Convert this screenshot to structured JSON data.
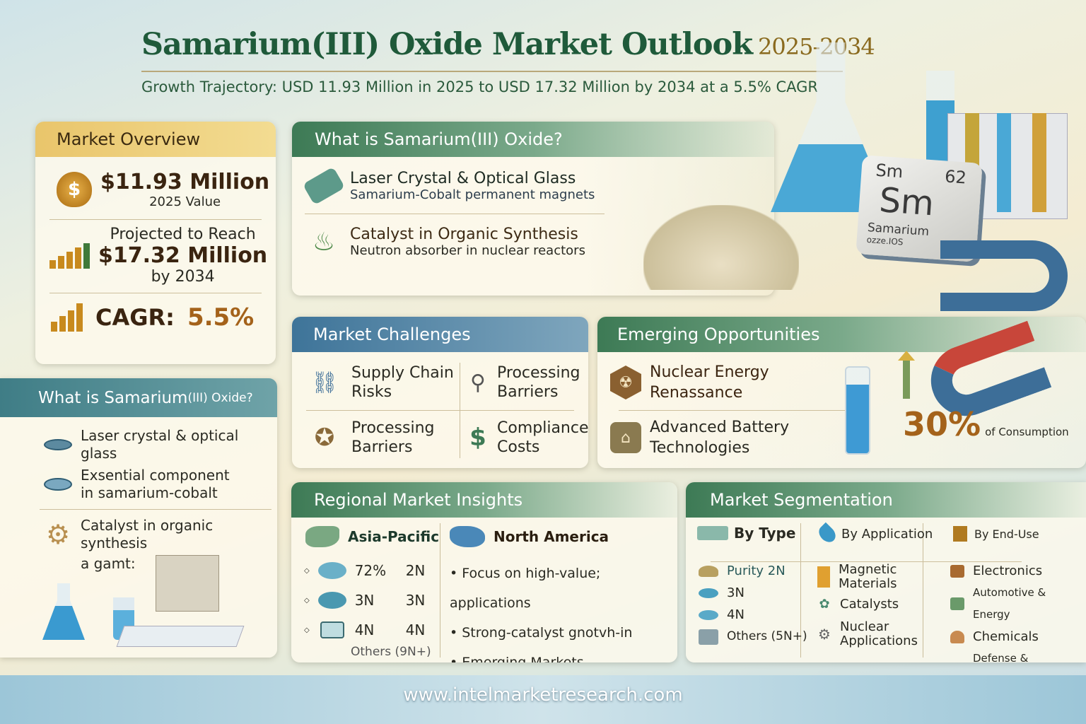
{
  "header": {
    "title": "Samarium(III) Oxide Market Outlook",
    "years": "2025-2034",
    "subtitle": "Growth Trajectory: USD 11.93 Million in 2025 to USD 17.32 Million by 2034 at a 5.5% CAGR"
  },
  "overview": {
    "title": "Market Overview",
    "value_2025": "$11.93 Million",
    "value_2025_label": "2025 Value",
    "projected_label": "Projected to Reach",
    "value_2034": "$17.32 Million",
    "value_2034_label": "by 2034",
    "cagr_label": "CAGR:",
    "cagr": "5.5%"
  },
  "what_is_left": {
    "title_main": "What is Samarium",
    "title_suffix": "(III) Oxide?",
    "items": [
      "Laser crystal & optical glass",
      "Exsential component in samarium-cobalt",
      "Catalyst in organic synthesis",
      "a gamt:"
    ]
  },
  "what_is_top": {
    "title": "What is Samarium(III) Oxide?",
    "items": [
      {
        "title": "Laser Crystal & Optical Glass",
        "sub": "Samarium-Cobalt permanent magnets"
      },
      {
        "title": "Catalyst in Organic Synthesis",
        "sub": "Neutron absorber in nuclear reactors"
      }
    ]
  },
  "element_tile": {
    "symbol_small": "Sm",
    "number": "62",
    "symbol": "Sm",
    "name": "Samarium",
    "caption": "ozze.IOS"
  },
  "challenges": {
    "title": "Market Challenges",
    "items": [
      "Supply Chain Risks",
      "Processing Barriers",
      "Processing Barriers",
      "Compliance Costs"
    ]
  },
  "opportunities": {
    "title": "Emerging Opportunities",
    "items": [
      "Nuclear Energy Renassance",
      "Advanced Battery Technologies"
    ],
    "stat": "30%",
    "stat_label": "of Consumption"
  },
  "regional": {
    "title": "Regional Market Insights",
    "asia": {
      "name": "Asia-Pacific",
      "rows": [
        [
          "72%",
          "2N"
        ],
        [
          "3N",
          "3N"
        ],
        [
          "4N",
          "4N"
        ]
      ],
      "others": "Others (9N+)"
    },
    "na": {
      "name": "North America",
      "bullets": [
        "Focus on high-value; applications",
        "Strong-catalyst gnotvh-in",
        "Emerging Markets"
      ]
    }
  },
  "segmentation": {
    "title": "Market Segmentation",
    "by_type": {
      "label": "By Type",
      "items": [
        "Purity 2N",
        "3N",
        "4N",
        "Others (5N+)"
      ]
    },
    "by_application": {
      "label": "By Application",
      "items": [
        "Magnetic Materials",
        "Catalysts",
        "Nuclear Applications"
      ]
    },
    "by_end_use": {
      "label": "By End-Use",
      "items": [
        "Electronics",
        "Automotive & Energy",
        "Chemicals",
        "Defense & Aerospace"
      ]
    }
  },
  "footer": {
    "url": "www.intelmarketresearch.com"
  },
  "colors": {
    "title_green": "#1f5a3a",
    "gold": "#8a6a1e",
    "accent_orange": "#c88a1e"
  }
}
